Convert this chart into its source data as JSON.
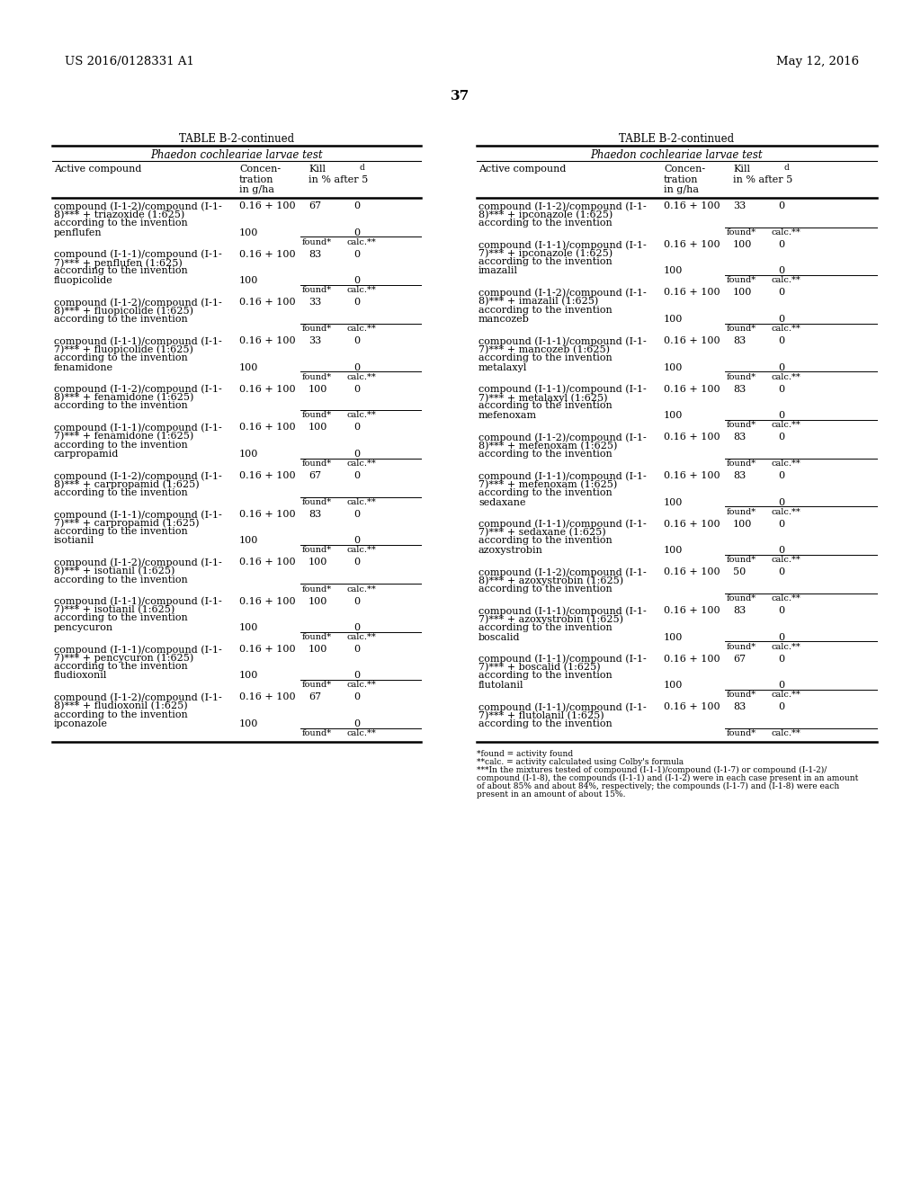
{
  "header_left": "US 2016/0128331 A1",
  "header_right": "May 12, 2016",
  "page_number": "37",
  "table_title": "TABLE B-2-continued",
  "table_subtitle_italic": "Phaedon cochleariae larvae test",
  "background_color": "#ffffff",
  "left_table": [
    {
      "combo": [
        "compound (I-1-2)/compound (I-1-",
        "8)*** + triazoxide (1:625)",
        "according to the invention"
      ],
      "conc": "0.16 + 100",
      "kill": "67",
      "calc_val": "0",
      "solo": "penflufen",
      "solo_conc": "100",
      "solo_kill": "0"
    },
    {
      "combo": [
        "compound (I-1-1)/compound (I-1-",
        "7)*** + penflufen (1:625)",
        "according to the invention"
      ],
      "conc": "0.16 + 100",
      "kill": "83",
      "calc_val": "0",
      "solo": "fluopicolide",
      "solo_conc": "100",
      "solo_kill": "0"
    },
    {
      "combo": [
        "compound (I-1-2)/compound (I-1-",
        "8)*** + fluopicolide (1:625)",
        "according to the invention"
      ],
      "conc": "0.16 + 100",
      "kill": "33",
      "calc_val": "0",
      "solo": "",
      "solo_conc": "",
      "solo_kill": ""
    },
    {
      "combo": [
        "compound (I-1-1)/compound (I-1-",
        "7)*** + fluopicolide (1:625)",
        "according to the invention"
      ],
      "conc": "0.16 + 100",
      "kill": "33",
      "calc_val": "0",
      "solo": "fenamidone",
      "solo_conc": "100",
      "solo_kill": "0"
    },
    {
      "combo": [
        "compound (I-1-2)/compound (I-1-",
        "8)*** + fenamidone (1:625)",
        "according to the invention"
      ],
      "conc": "0.16 + 100",
      "kill": "100",
      "calc_val": "0",
      "solo": "",
      "solo_conc": "",
      "solo_kill": ""
    },
    {
      "combo": [
        "compound (I-1-1)/compound (I-1-",
        "7)*** + fenamidone (1:625)",
        "according to the invention"
      ],
      "conc": "0.16 + 100",
      "kill": "100",
      "calc_val": "0",
      "solo": "carpropamid",
      "solo_conc": "100",
      "solo_kill": "0"
    },
    {
      "combo": [
        "compound (I-1-2)/compound (I-1-",
        "8)*** + carpropamid (1:625)",
        "according to the invention"
      ],
      "conc": "0.16 + 100",
      "kill": "67",
      "calc_val": "0",
      "solo": "",
      "solo_conc": "",
      "solo_kill": ""
    },
    {
      "combo": [
        "compound (I-1-1)/compound (I-1-",
        "7)*** + carpropamid (1:625)",
        "according to the invention"
      ],
      "conc": "0.16 + 100",
      "kill": "83",
      "calc_val": "0",
      "solo": "isotianil",
      "solo_conc": "100",
      "solo_kill": "0"
    },
    {
      "combo": [
        "compound (I-1-2)/compound (I-1-",
        "8)*** + isotianil (1:625)",
        "according to the invention"
      ],
      "conc": "0.16 + 100",
      "kill": "100",
      "calc_val": "0",
      "solo": "",
      "solo_conc": "",
      "solo_kill": ""
    },
    {
      "combo": [
        "compound (I-1-1)/compound (I-1-",
        "7)*** + isotianil (1:625)",
        "according to the invention"
      ],
      "conc": "0.16 + 100",
      "kill": "100",
      "calc_val": "0",
      "solo": "pencycuron",
      "solo_conc": "100",
      "solo_kill": "0"
    },
    {
      "combo": [
        "compound (I-1-1)/compound (I-1-",
        "7)*** + pencycuron (1:625)",
        "according to the invention"
      ],
      "conc": "0.16 + 100",
      "kill": "100",
      "calc_val": "0",
      "solo": "fludioxonil",
      "solo_conc": "100",
      "solo_kill": "0"
    },
    {
      "combo": [
        "compound (I-1-2)/compound (I-1-",
        "8)*** + fludioxonil (1:625)",
        "according to the invention"
      ],
      "conc": "0.16 + 100",
      "kill": "67",
      "calc_val": "0",
      "solo": "ipconazole",
      "solo_conc": "100",
      "solo_kill": "0"
    }
  ],
  "right_table": [
    {
      "combo": [
        "compound (I-1-2)/compound (I-1-",
        "8)*** + ipconazole (1:625)",
        "according to the invention"
      ],
      "conc": "0.16 + 100",
      "kill": "33",
      "calc_val": "0",
      "solo": "",
      "solo_conc": "",
      "solo_kill": ""
    },
    {
      "combo": [
        "compound (I-1-1)/compound (I-1-",
        "7)*** + ipconazole (1:625)",
        "according to the invention"
      ],
      "conc": "0.16 + 100",
      "kill": "100",
      "calc_val": "0",
      "solo": "imazalil",
      "solo_conc": "100",
      "solo_kill": "0"
    },
    {
      "combo": [
        "compound (I-1-2)/compound (I-1-",
        "8)*** + imazalil (1:625)",
        "according to the invention"
      ],
      "conc": "0.16 + 100",
      "kill": "100",
      "calc_val": "0",
      "solo": "mancozeb",
      "solo_conc": "100",
      "solo_kill": "0"
    },
    {
      "combo": [
        "compound (I-1-1)/compound (I-1-",
        "7)*** + mancozeb (1:625)",
        "according to the invention"
      ],
      "conc": "0.16 + 100",
      "kill": "83",
      "calc_val": "0",
      "solo": "metalaxyl",
      "solo_conc": "100",
      "solo_kill": "0"
    },
    {
      "combo": [
        "compound (I-1-1)/compound (I-1-",
        "7)*** + metalaxyl (1:625)",
        "according to the invention"
      ],
      "conc": "0.16 + 100",
      "kill": "83",
      "calc_val": "0",
      "solo": "mefenoxam",
      "solo_conc": "100",
      "solo_kill": "0"
    },
    {
      "combo": [
        "compound (I-1-2)/compound (I-1-",
        "8)*** + mefenoxam (1:625)",
        "according to the invention"
      ],
      "conc": "0.16 + 100",
      "kill": "83",
      "calc_val": "0",
      "solo": "",
      "solo_conc": "",
      "solo_kill": ""
    },
    {
      "combo": [
        "compound (I-1-1)/compound (I-1-",
        "7)*** + mefenoxam (1:625)",
        "according to the invention"
      ],
      "conc": "0.16 + 100",
      "kill": "83",
      "calc_val": "0",
      "solo": "sedaxane",
      "solo_conc": "100",
      "solo_kill": "0"
    },
    {
      "combo": [
        "compound (I-1-1)/compound (I-1-",
        "7)*** + sedaxane (1:625)",
        "according to the invention"
      ],
      "conc": "0.16 + 100",
      "kill": "100",
      "calc_val": "0",
      "solo": "azoxystrobin",
      "solo_conc": "100",
      "solo_kill": "0"
    },
    {
      "combo": [
        "compound (I-1-2)/compound (I-1-",
        "8)*** + azoxystrobin (1:625)",
        "according to the invention"
      ],
      "conc": "0.16 + 100",
      "kill": "50",
      "calc_val": "0",
      "solo": "",
      "solo_conc": "",
      "solo_kill": ""
    },
    {
      "combo": [
        "compound (I-1-1)/compound (I-1-",
        "7)*** + azoxystrobin (1:625)",
        "according to the invention"
      ],
      "conc": "0.16 + 100",
      "kill": "83",
      "calc_val": "0",
      "solo": "boscalid",
      "solo_conc": "100",
      "solo_kill": "0"
    },
    {
      "combo": [
        "compound (I-1-1)/compound (I-1-",
        "7)*** + boscalid (1:625)",
        "according to the invention"
      ],
      "conc": "0.16 + 100",
      "kill": "67",
      "calc_val": "0",
      "solo": "flutolanil",
      "solo_conc": "100",
      "solo_kill": "0"
    },
    {
      "combo": [
        "compound (I-1-1)/compound (I-1-",
        "7)*** + flutolanil (1:625)",
        "according to the invention"
      ],
      "conc": "0.16 + 100",
      "kill": "83",
      "calc_val": "0",
      "solo": "",
      "solo_conc": "",
      "solo_kill": ""
    }
  ],
  "footnote1": "*found = activity found",
  "footnote2": "**calc. = activity calculated using Colby's formula",
  "footnote3a": "***In the mixtures tested of compound (I-1-1)/compound (I-1-7) or compound (I-1-2)/",
  "footnote3b": "compound (I-1-8), the compounds (I-1-1) and (I-1-2) were in each case present in an amount",
  "footnote3c": "of about 85% and about 84%, respectively; the compounds (I-1-7) and (I-1-8) were each",
  "footnote3d": "present in an amount of about 15%."
}
